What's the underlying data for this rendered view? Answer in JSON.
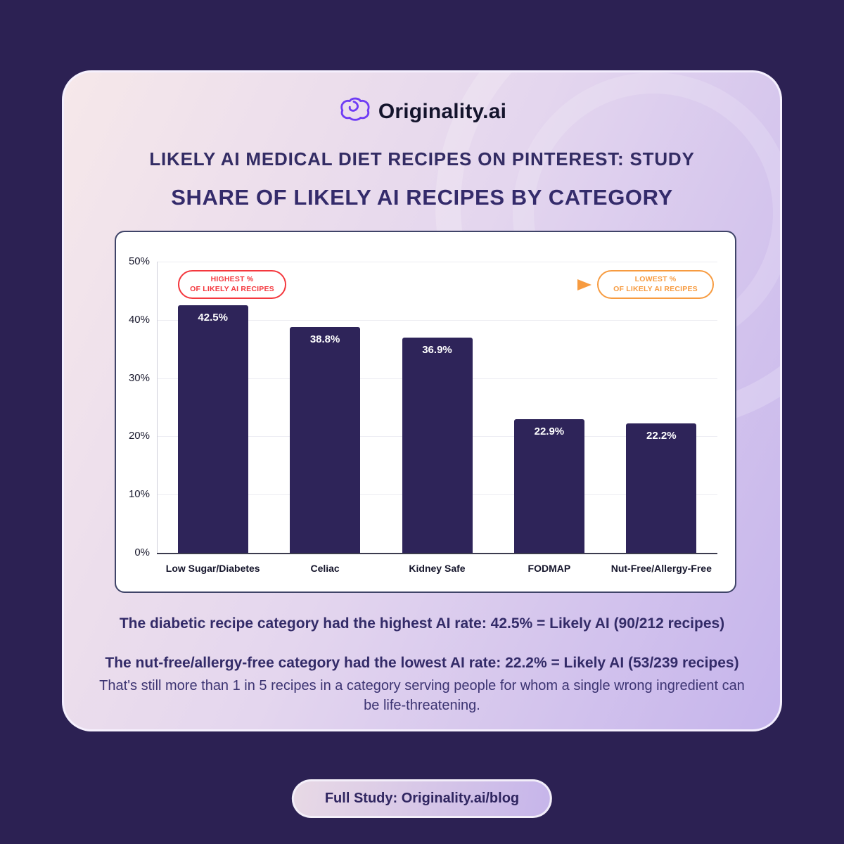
{
  "brand": {
    "name": "Originality.ai"
  },
  "header": {
    "kicker": "LIKELY AI MEDICAL DIET RECIPES ON PINTEREST: STUDY",
    "title": "SHARE OF LIKELY AI RECIPES BY CATEGORY"
  },
  "chart_data": {
    "type": "bar",
    "title": "SHARE OF LIKELY AI RECIPES BY CATEGORY",
    "categories": [
      "Low Sugar/Diabetes",
      "Celiac",
      "Kidney Safe",
      "FODMAP",
      "Nut-Free/Allergy-Free"
    ],
    "values": [
      42.5,
      38.8,
      36.9,
      22.9,
      22.2
    ],
    "value_labels": [
      "42.5%",
      "38.8%",
      "36.9%",
      "22.9%",
      "22.2%"
    ],
    "xlabel": "",
    "ylabel": "",
    "ylim": [
      0,
      50
    ],
    "ytick_values": [
      0,
      10,
      20,
      30,
      40,
      50
    ],
    "yticks": [
      "0%",
      "10%",
      "20%",
      "30%",
      "40%",
      "50%"
    ],
    "grid": true,
    "legend": false,
    "bar_color": "#2e2459",
    "annotations": [
      {
        "text": "HIGHEST % OF LIKELY AI RECIPES",
        "color": "#f4383e",
        "position": "above-first-bar"
      },
      {
        "text": "LOWEST % OF LIKELY AI RECIPES",
        "color": "#f79b40",
        "position": "above-last-bar"
      }
    ]
  },
  "annotations": {
    "high_line1": "HIGHEST %",
    "high_line2": "OF LIKELY AI RECIPES",
    "low_line1": "LOWEST %",
    "low_line2": "OF LIKELY AI RECIPES"
  },
  "footnotes": {
    "line1": "The diabetic recipe category had the highest AI rate: 42.5% = Likely AI (90/212 recipes)",
    "line2": "The nut-free/allergy-free category had the lowest AI rate: 22.2% = Likely AI (53/239 recipes)",
    "line3": "That's still more than 1 in 5 recipes in a category serving people for whom a single wrong ingredient can be life-threatening."
  },
  "footer": {
    "button_label": "Full Study: Originality.ai/blog"
  },
  "colors": {
    "page_bg": "#2c2153",
    "bar": "#2e2459",
    "accent_red": "#f4383e",
    "accent_orange": "#f79b40",
    "brand_purple": "#6f3cf4",
    "heading": "#342b6b"
  }
}
